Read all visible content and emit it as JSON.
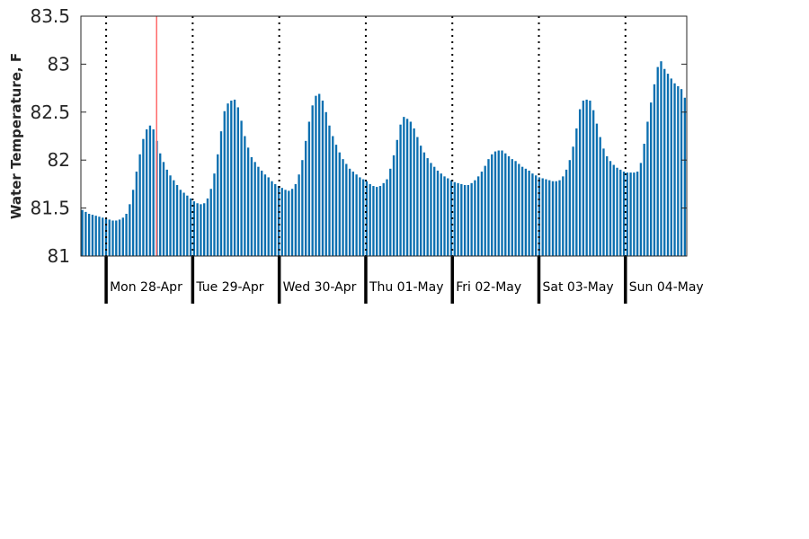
{
  "chart_data": {
    "type": "bar",
    "ylabel": "Water Temperature, F",
    "ylim": [
      81,
      83.5
    ],
    "yticks": [
      81,
      81.5,
      82,
      82.5,
      83,
      83.5
    ],
    "ytick_labels": [
      "81",
      "81.5",
      "82",
      "82.5",
      "83",
      "83.5"
    ],
    "bar_color": "#0b6fb0",
    "marker_color": "#ff6b6b",
    "day_labels": [
      "Mon 28-Apr",
      "Tue 29-Apr",
      "Wed 30-Apr",
      "Thu 01-May",
      "Fri 02-May",
      "Sat 03-May",
      "Sun 04-May"
    ],
    "x_start_hour": -7,
    "x_end_hour": 161,
    "current_time_hour": 14,
    "values": [
      81.48,
      81.46,
      81.44,
      81.43,
      81.42,
      81.41,
      81.4,
      81.39,
      81.38,
      81.37,
      81.37,
      81.38,
      81.4,
      81.44,
      81.54,
      81.69,
      81.88,
      82.06,
      82.22,
      82.32,
      82.36,
      82.32,
      82.2,
      82.07,
      81.98,
      81.9,
      81.84,
      81.79,
      81.74,
      81.69,
      81.66,
      81.63,
      81.6,
      81.57,
      81.55,
      81.54,
      81.55,
      81.6,
      81.7,
      81.86,
      82.06,
      82.3,
      82.51,
      82.59,
      82.62,
      82.63,
      82.55,
      82.41,
      82.25,
      82.13,
      82.03,
      81.98,
      81.93,
      81.89,
      81.85,
      81.82,
      81.78,
      81.75,
      81.73,
      81.71,
      81.69,
      81.68,
      81.7,
      81.75,
      81.85,
      82.0,
      82.2,
      82.4,
      82.57,
      82.67,
      82.69,
      82.62,
      82.5,
      82.36,
      82.25,
      82.16,
      82.08,
      82.01,
      81.96,
      81.91,
      81.88,
      81.85,
      81.82,
      81.8,
      81.78,
      81.75,
      81.73,
      81.72,
      81.73,
      81.76,
      81.8,
      81.91,
      82.05,
      82.21,
      82.37,
      82.45,
      82.43,
      82.4,
      82.33,
      82.24,
      82.15,
      82.08,
      82.02,
      81.97,
      81.93,
      81.89,
      81.86,
      81.83,
      81.81,
      81.79,
      81.77,
      81.76,
      81.75,
      81.74,
      81.74,
      81.76,
      81.79,
      81.83,
      81.88,
      81.94,
      82.01,
      82.06,
      82.09,
      82.1,
      82.1,
      82.07,
      82.04,
      82.01,
      81.99,
      81.96,
      81.93,
      81.91,
      81.89,
      81.86,
      81.84,
      81.82,
      81.81,
      81.8,
      81.79,
      81.78,
      81.78,
      81.79,
      81.83,
      81.9,
      82.0,
      82.14,
      82.33,
      82.53,
      82.62,
      82.63,
      82.62,
      82.52,
      82.38,
      82.24,
      82.12,
      82.04,
      81.99,
      81.95,
      81.92,
      81.9,
      81.88,
      81.87,
      81.87,
      81.87,
      81.88,
      81.97,
      82.17,
      82.4,
      82.6,
      82.79,
      82.97,
      83.03,
      82.95,
      82.9,
      82.85,
      82.8,
      82.77,
      82.74,
      82.65
    ]
  }
}
